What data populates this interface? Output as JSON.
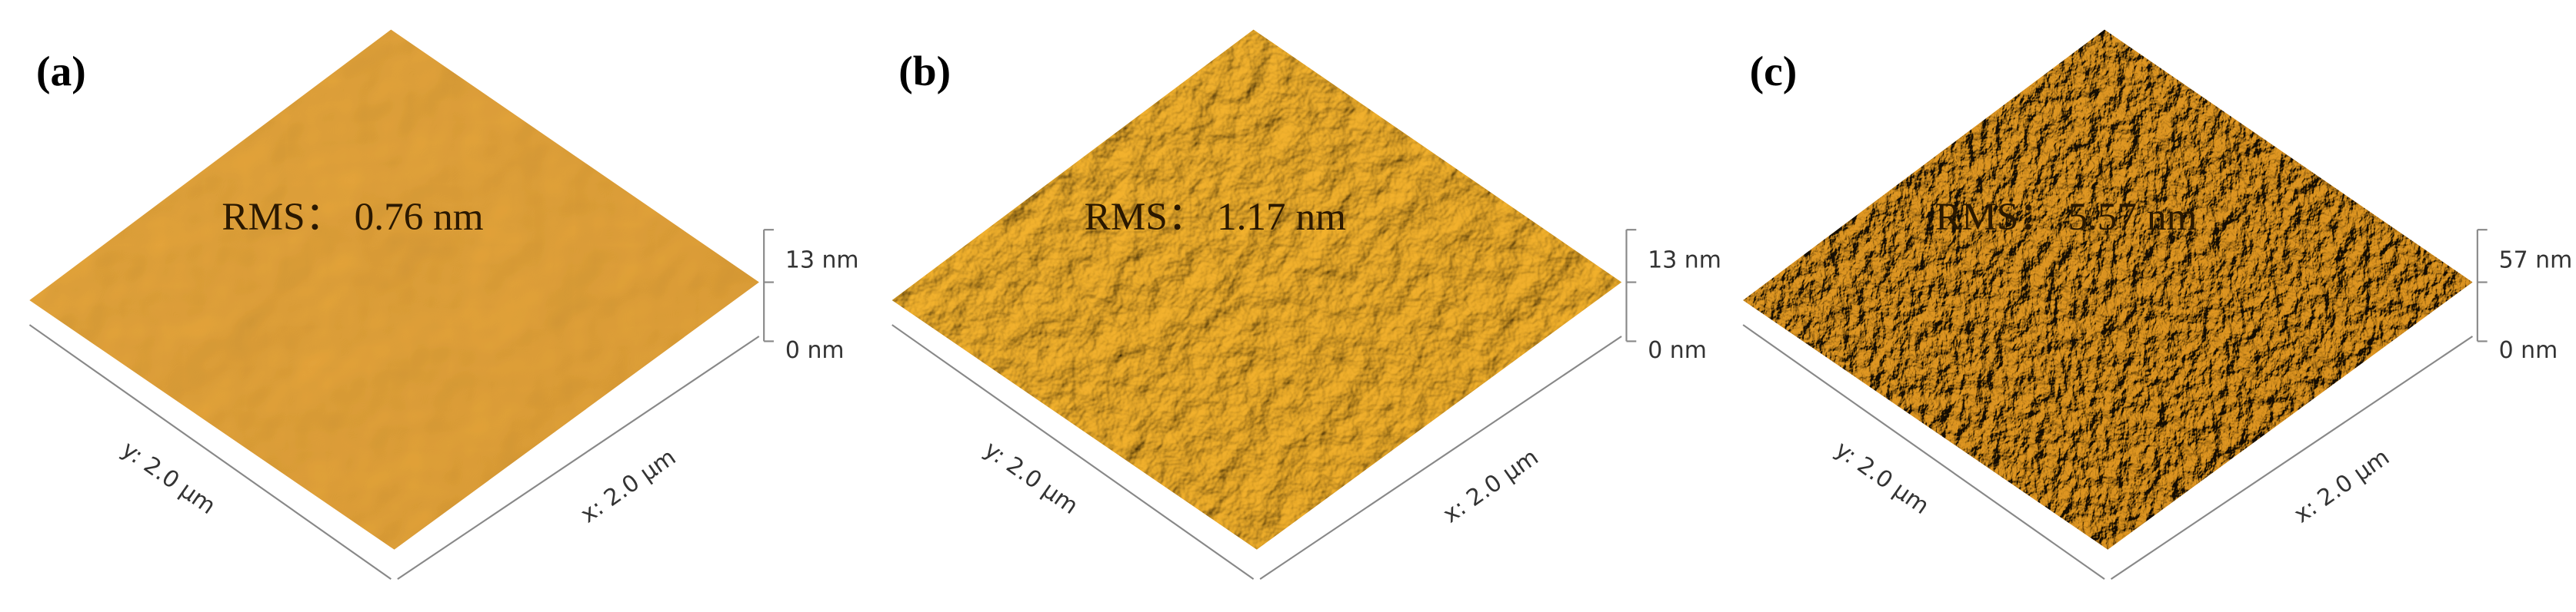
{
  "panels": [
    {
      "label": "(a)",
      "rms": "RMS： 0.76 nm",
      "z_top": "13 nm",
      "z_bottom": "0 nm",
      "y_axis": "y: 2.0 μm",
      "x_axis": "x: 2.0 μm"
    },
    {
      "label": "(b)",
      "rms": "RMS： 1.17 nm",
      "z_top": "13 nm",
      "z_bottom": "0 nm",
      "y_axis": "y: 2.0 μm",
      "x_axis": "x: 2.0 μm"
    },
    {
      "label": "(c)",
      "rms": "RMS： 5.57 nm",
      "z_top": "57 nm",
      "z_bottom": "0 nm",
      "y_axis": "y: 2.0 μm",
      "x_axis": "x: 2.0 μm"
    }
  ]
}
